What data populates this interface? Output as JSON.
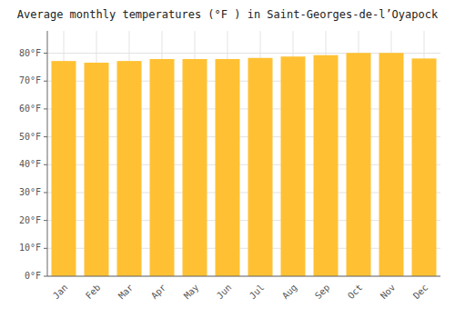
{
  "chart_data": {
    "type": "bar",
    "title": "Average monthly temperatures (°F ) in Saint-Georges-de-l’Oyapock",
    "categories": [
      "Jan",
      "Feb",
      "Mar",
      "Apr",
      "May",
      "Jun",
      "Jul",
      "Aug",
      "Sep",
      "Oct",
      "Nov",
      "Dec"
    ],
    "values": [
      77.2,
      76.6,
      77.2,
      77.9,
      77.9,
      77.9,
      78.3,
      78.8,
      79.3,
      80.1,
      80.1,
      78.1
    ],
    "color": "#FFC133",
    "ylim": [
      0,
      88
    ],
    "yticks": [
      {
        "value": 0,
        "label": "0°F"
      },
      {
        "value": 10,
        "label": "10°F"
      },
      {
        "value": 20,
        "label": "20°F"
      },
      {
        "value": 30,
        "label": "30°F"
      },
      {
        "value": 40,
        "label": "40°F"
      },
      {
        "value": 50,
        "label": "50°F"
      },
      {
        "value": 60,
        "label": "60°F"
      },
      {
        "value": 70,
        "label": "70°F"
      },
      {
        "value": 80,
        "label": "80°F"
      }
    ],
    "grid": true
  }
}
